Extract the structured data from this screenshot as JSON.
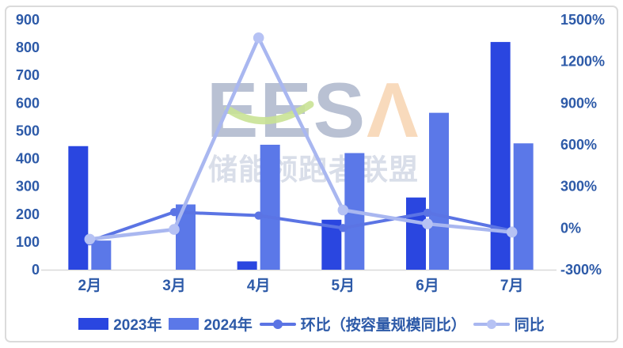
{
  "chart_data": {
    "type": "combo-bar-line",
    "title": "",
    "categories": [
      "2月",
      "3月",
      "4月",
      "5月",
      "6月",
      "7月"
    ],
    "bar_series": [
      {
        "name": "2023年",
        "color": "#2a46e0",
        "axis": "left",
        "values": [
          445,
          null,
          30,
          180,
          260,
          820
        ]
      },
      {
        "name": "2024年",
        "color": "#5b78e8",
        "axis": "left",
        "values": [
          105,
          235,
          450,
          420,
          565,
          455
        ]
      }
    ],
    "line_series": [
      {
        "name": "环比（按容量规模同比）",
        "color": "#5b74e4",
        "marker_color": "#5b74e4",
        "axis": "right",
        "values_pct": [
          -95,
          115,
          90,
          0,
          110,
          -20
        ]
      },
      {
        "name": "同比",
        "color": "#a9b7f0",
        "marker_color": "#b6c2f4",
        "axis": "right",
        "values_pct": [
          -80,
          -10,
          1370,
          130,
          30,
          -30
        ]
      }
    ],
    "left_axis": {
      "min": 0,
      "max": 900,
      "step": 100,
      "labels": [
        "0",
        "100",
        "200",
        "300",
        "400",
        "500",
        "600",
        "700",
        "800",
        "900"
      ]
    },
    "right_axis": {
      "min": -300,
      "max": 1500,
      "step": 300,
      "labels": [
        "-300%",
        "0%",
        "300%",
        "600%",
        "900%",
        "1200%",
        "1500%"
      ]
    },
    "gridlines": false,
    "legend_position": "bottom"
  },
  "watermark": {
    "logo_text": "EESA",
    "logo_prefix": "EES",
    "logo_accent": "Λ",
    "subtitle": "储能领跑者联盟"
  },
  "colors": {
    "axis_text": "#2d5aa8",
    "baseline": "#d9d9d9",
    "card_border": "#dbdbdb",
    "watermark_letters": "#b9c1d3",
    "watermark_accent": "#f8dabc",
    "watermark_swoosh": "#c9e295",
    "watermark_subtitle": "#d9dee9"
  }
}
